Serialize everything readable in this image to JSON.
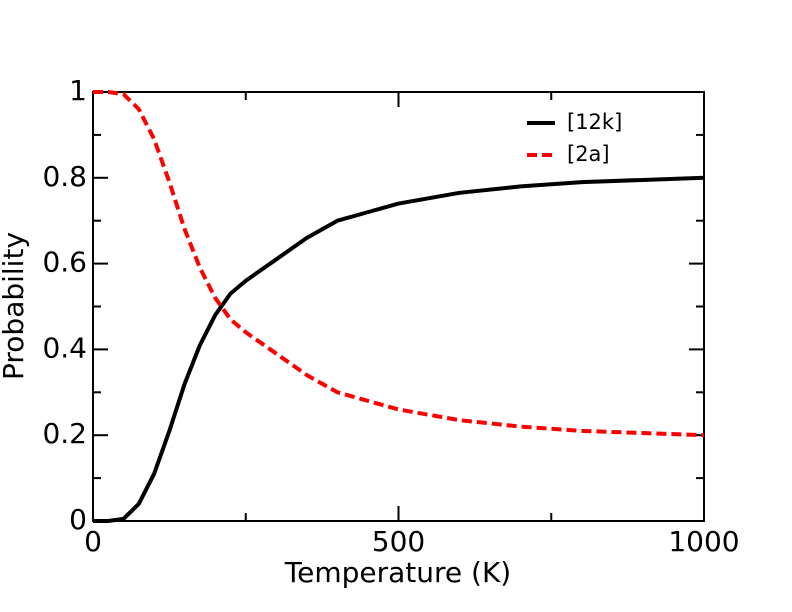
{
  "chart_data": {
    "type": "line",
    "x_label": "Temperature (K)",
    "y_label": "Probability",
    "x": [
      0,
      25,
      50,
      75,
      100,
      125,
      150,
      175,
      200,
      225,
      250,
      300,
      350,
      400,
      450,
      500,
      600,
      700,
      800,
      900,
      1000
    ],
    "series": [
      {
        "name": "[12k]",
        "color": "#000000",
        "dash": "solid",
        "values": [
          0,
          0,
          0.005,
          0.04,
          0.11,
          0.21,
          0.32,
          0.41,
          0.48,
          0.53,
          0.56,
          0.61,
          0.66,
          0.7,
          0.72,
          0.74,
          0.765,
          0.78,
          0.79,
          0.795,
          0.8
        ]
      },
      {
        "name": "[2a]",
        "color": "#ff0000",
        "dash": "dashed",
        "values": [
          1,
          1,
          0.995,
          0.96,
          0.89,
          0.79,
          0.68,
          0.59,
          0.52,
          0.47,
          0.44,
          0.39,
          0.34,
          0.3,
          0.28,
          0.26,
          0.235,
          0.22,
          0.21,
          0.205,
          0.2
        ]
      }
    ],
    "xlim": [
      0,
      1000
    ],
    "xticks": [
      0,
      500,
      1000
    ],
    "xminorticks": [
      250,
      750
    ],
    "ylim": [
      0,
      1
    ],
    "yticks": [
      0,
      0.2,
      0.4,
      0.6,
      0.8,
      1
    ],
    "yminorticks": [
      0.1,
      0.3,
      0.5,
      0.7,
      0.9
    ],
    "legend": "upper-right"
  }
}
